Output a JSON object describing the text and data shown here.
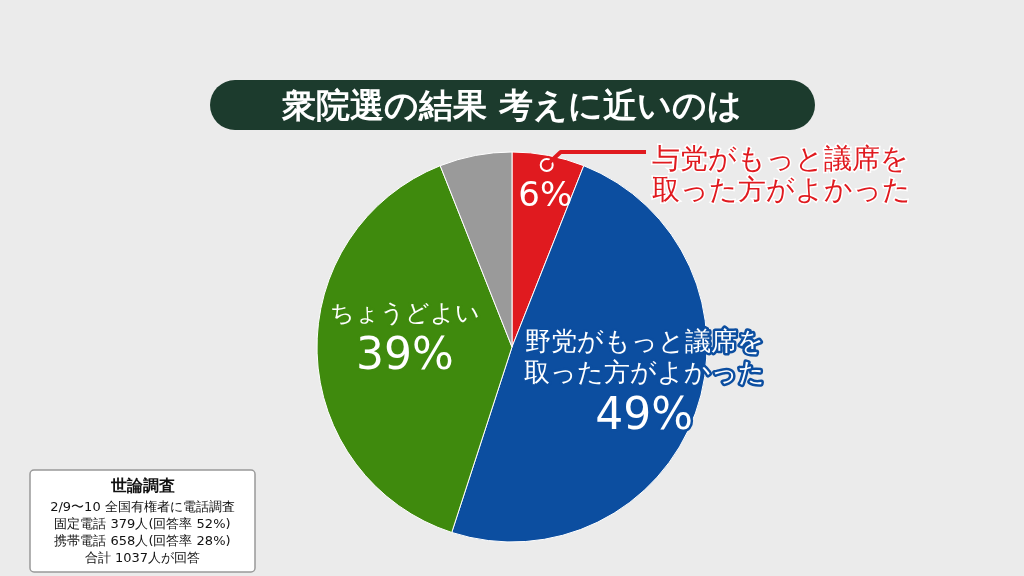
{
  "chart_data": {
    "type": "pie",
    "title": "衆院選の結果 考えに近いのは",
    "categories": [
      "与党がもっと議席を取った方がよかった",
      "野党がもっと議席を取った方がよかった",
      "ちょうどよい",
      null
    ],
    "values": [
      6,
      49,
      39,
      6
    ],
    "colors": [
      "#e01a1f",
      "#0c4ea0",
      "#3f8a0d",
      "#9a9a9a"
    ],
    "value_labels": [
      "6%",
      "49%",
      "39%",
      null
    ],
    "annotations": [
      "世論調査",
      "2/9〜10 全国有権者に電話調査",
      "固定電話 379人(回答率 52%)",
      "携帯電話 658人(回答率 28%)",
      "合計 1037人が回答"
    ]
  }
}
